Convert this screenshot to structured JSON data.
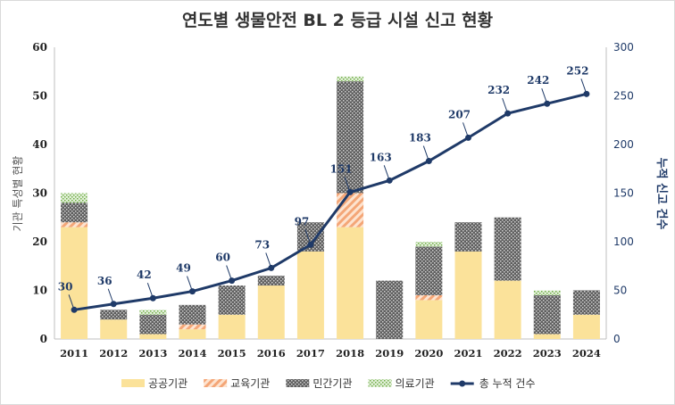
{
  "chart_data": {
    "type": "bar",
    "title": "연도별 생물안전 BL 2 등급 시설 신고 현황",
    "ylabel": "기관 특성별 현황",
    "y2label": "누적 신고 건수",
    "categories": [
      "2011",
      "2012",
      "2013",
      "2014",
      "2015",
      "2016",
      "2017",
      "2018",
      "2019",
      "2020",
      "2021",
      "2022",
      "2023",
      "2024"
    ],
    "ylim": [
      0,
      60
    ],
    "y2lim": [
      0,
      300
    ],
    "yticks": [
      0,
      10,
      20,
      30,
      40,
      50,
      60
    ],
    "y2ticks": [
      0,
      50,
      100,
      150,
      200,
      250,
      300
    ],
    "stacked": true,
    "series": [
      {
        "name": "공공기관",
        "kind": "bar",
        "color": "#fbe29a",
        "pattern": "solid",
        "values": [
          23,
          4,
          1,
          2,
          5,
          11,
          18,
          23,
          0,
          8,
          18,
          12,
          1,
          5
        ]
      },
      {
        "name": "교육기관",
        "kind": "bar",
        "color": "#f4b183",
        "pattern": "diagonal",
        "values": [
          1,
          0,
          0,
          1,
          0,
          0,
          0,
          7,
          0,
          1,
          0,
          0,
          0,
          0
        ]
      },
      {
        "name": "민간기관",
        "kind": "bar",
        "color": "#808080",
        "pattern": "dots-dark",
        "values": [
          4,
          2,
          4,
          4,
          6,
          2,
          6,
          23,
          12,
          10,
          6,
          13,
          8,
          5
        ]
      },
      {
        "name": "의료기관",
        "kind": "bar",
        "color": "#a9d18e",
        "pattern": "dots-light",
        "values": [
          2,
          0,
          1,
          0,
          0,
          0,
          0,
          1,
          0,
          1,
          0,
          0,
          1,
          0
        ]
      },
      {
        "name": "총 누적 건수",
        "kind": "line",
        "axis": "right",
        "color": "#1f3a68",
        "values": [
          30,
          36,
          42,
          49,
          60,
          73,
          97,
          151,
          163,
          183,
          207,
          232,
          242,
          252
        ]
      }
    ],
    "grid": false,
    "legend_position": "bottom"
  }
}
